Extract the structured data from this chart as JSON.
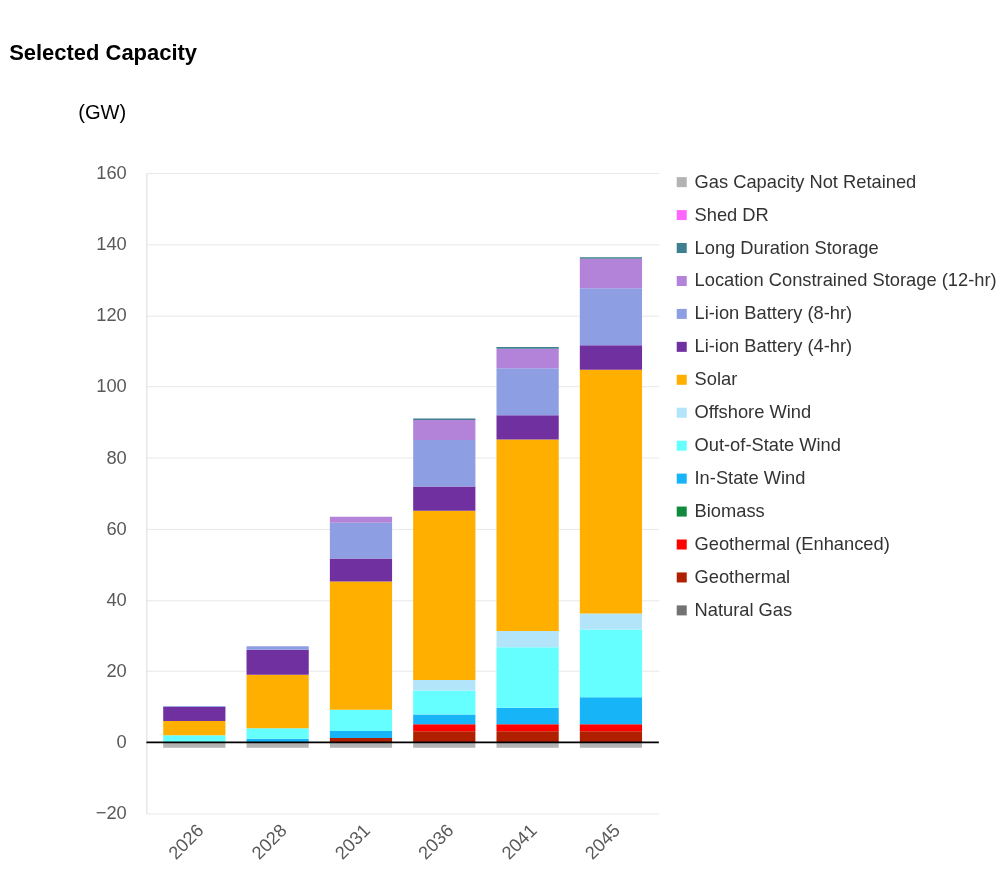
{
  "chart_data": {
    "type": "bar",
    "title": "Selected Capacity",
    "ylabel": "(GW)",
    "stacked": true,
    "categories": [
      "2026",
      "2028",
      "2031",
      "2036",
      "2041",
      "2045"
    ],
    "series": [
      {
        "name": "Natural Gas",
        "color": "#737373",
        "values": [
          null,
          null,
          null,
          null,
          null,
          null
        ]
      },
      {
        "name": "Geothermal",
        "color": "#b02000",
        "values": [
          null,
          null,
          1.2,
          3.1,
          3.1,
          3.1
        ]
      },
      {
        "name": "Geothermal (Enhanced)",
        "color": "#ff0000",
        "values": [
          null,
          null,
          null,
          2,
          2,
          2
        ]
      },
      {
        "name": "Biomass",
        "color": "#108a3c",
        "values": [
          null,
          null,
          null,
          null,
          null,
          null
        ]
      },
      {
        "name": "In-State Wind",
        "color": "#17b4f7",
        "values": [
          null,
          1,
          2,
          2.7,
          4.6,
          7.6
        ]
      },
      {
        "name": "Out-of-State Wind",
        "color": "#66ffff",
        "values": [
          2,
          3,
          6,
          6.8,
          17,
          19
        ]
      },
      {
        "name": "Offshore Wind",
        "color": "#b3e5fa",
        "values": [
          null,
          null,
          null,
          2.9,
          4.6,
          4.5
        ]
      },
      {
        "name": "Solar",
        "color": "#ffaf00",
        "values": [
          4,
          15,
          36,
          47.6,
          53.8,
          68.5
        ]
      },
      {
        "name": "Li-ion Battery (4-hr)",
        "color": "#7030a0",
        "values": [
          4,
          7,
          6.5,
          6.8,
          6.8,
          6.9
        ]
      },
      {
        "name": "Li-ion Battery (8-hr)",
        "color": "#8e9ee3",
        "values": [
          0.2,
          1,
          10,
          13.1,
          13.2,
          16
        ]
      },
      {
        "name": "Location Constrained Storage (12-hr)",
        "color": "#b383d9",
        "values": [
          null,
          null,
          1.7,
          5.6,
          5.5,
          8.3
        ]
      },
      {
        "name": "Long Duration Storage",
        "color": "#3f7f8f",
        "values": [
          null,
          null,
          null,
          0.4,
          0.5,
          0.4
        ]
      },
      {
        "name": "Shed DR",
        "color": "#ff66ff",
        "values": [
          null,
          null,
          null,
          null,
          null,
          null
        ]
      },
      {
        "name": "Gas Capacity Not Retained",
        "color": "#b3b3b3",
        "values": [
          -1.5,
          -1.5,
          -1.5,
          -1.5,
          -1.5,
          -1.5
        ]
      }
    ],
    "ylim": [
      -20,
      160
    ],
    "yticks": [
      -20,
      0,
      20,
      40,
      60,
      80,
      100,
      120,
      140,
      160
    ],
    "grid": "y",
    "legend": "right",
    "ref_lines": [
      {
        "axis": "y",
        "value": 0,
        "color": "#000000"
      }
    ]
  }
}
